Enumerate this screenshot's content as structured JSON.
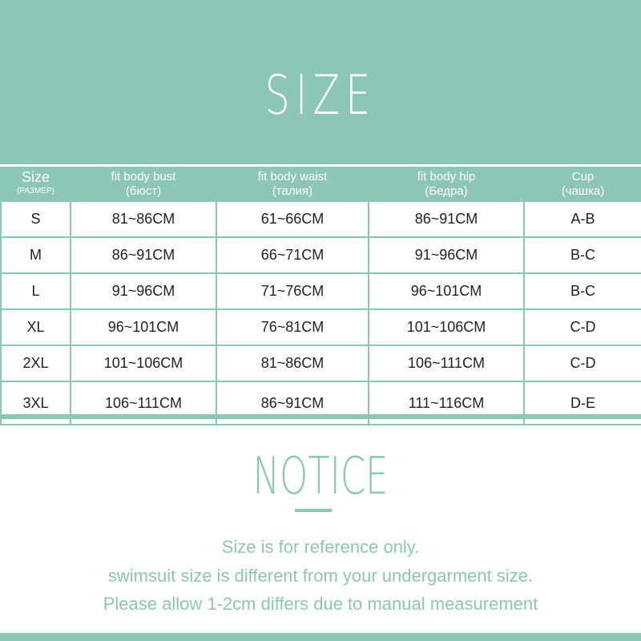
{
  "title": "SIZE",
  "table": {
    "headers": [
      {
        "main": "Size",
        "sub": "(РАЗМЕР)"
      },
      {
        "main": "fit body bust",
        "sub": "(бюст)"
      },
      {
        "main": "fit body waist",
        "sub": "(талия)"
      },
      {
        "main": "fit body hip",
        "sub": "(Бедра)"
      },
      {
        "main": "Cup",
        "sub": "(чашка)"
      }
    ],
    "rows": [
      [
        "S",
        "81~86CM",
        "61~66CM",
        "86~91CM",
        "A-B"
      ],
      [
        "M",
        "86~91CM",
        "66~71CM",
        "91~96CM",
        "B-C"
      ],
      [
        "L",
        "91~96CM",
        "71~76CM",
        "96~101CM",
        "B-C"
      ],
      [
        "XL",
        "96~101CM",
        "76~81CM",
        "101~106CM",
        "C-D"
      ],
      [
        "2XL",
        "101~106CM",
        "81~86CM",
        "106~111CM",
        "C-D"
      ],
      [
        "3XL",
        "106~111CM",
        "86~91CM",
        "111~116CM",
        "D-E"
      ]
    ]
  },
  "notice": {
    "title": "NOTICE",
    "lines": [
      "Size is for reference only.",
      "swimsuit size is different from your undergarment size.",
      "Please allow 1-2cm differs due to manual measurement"
    ]
  },
  "colors": {
    "accent": "#8cc6b4"
  }
}
